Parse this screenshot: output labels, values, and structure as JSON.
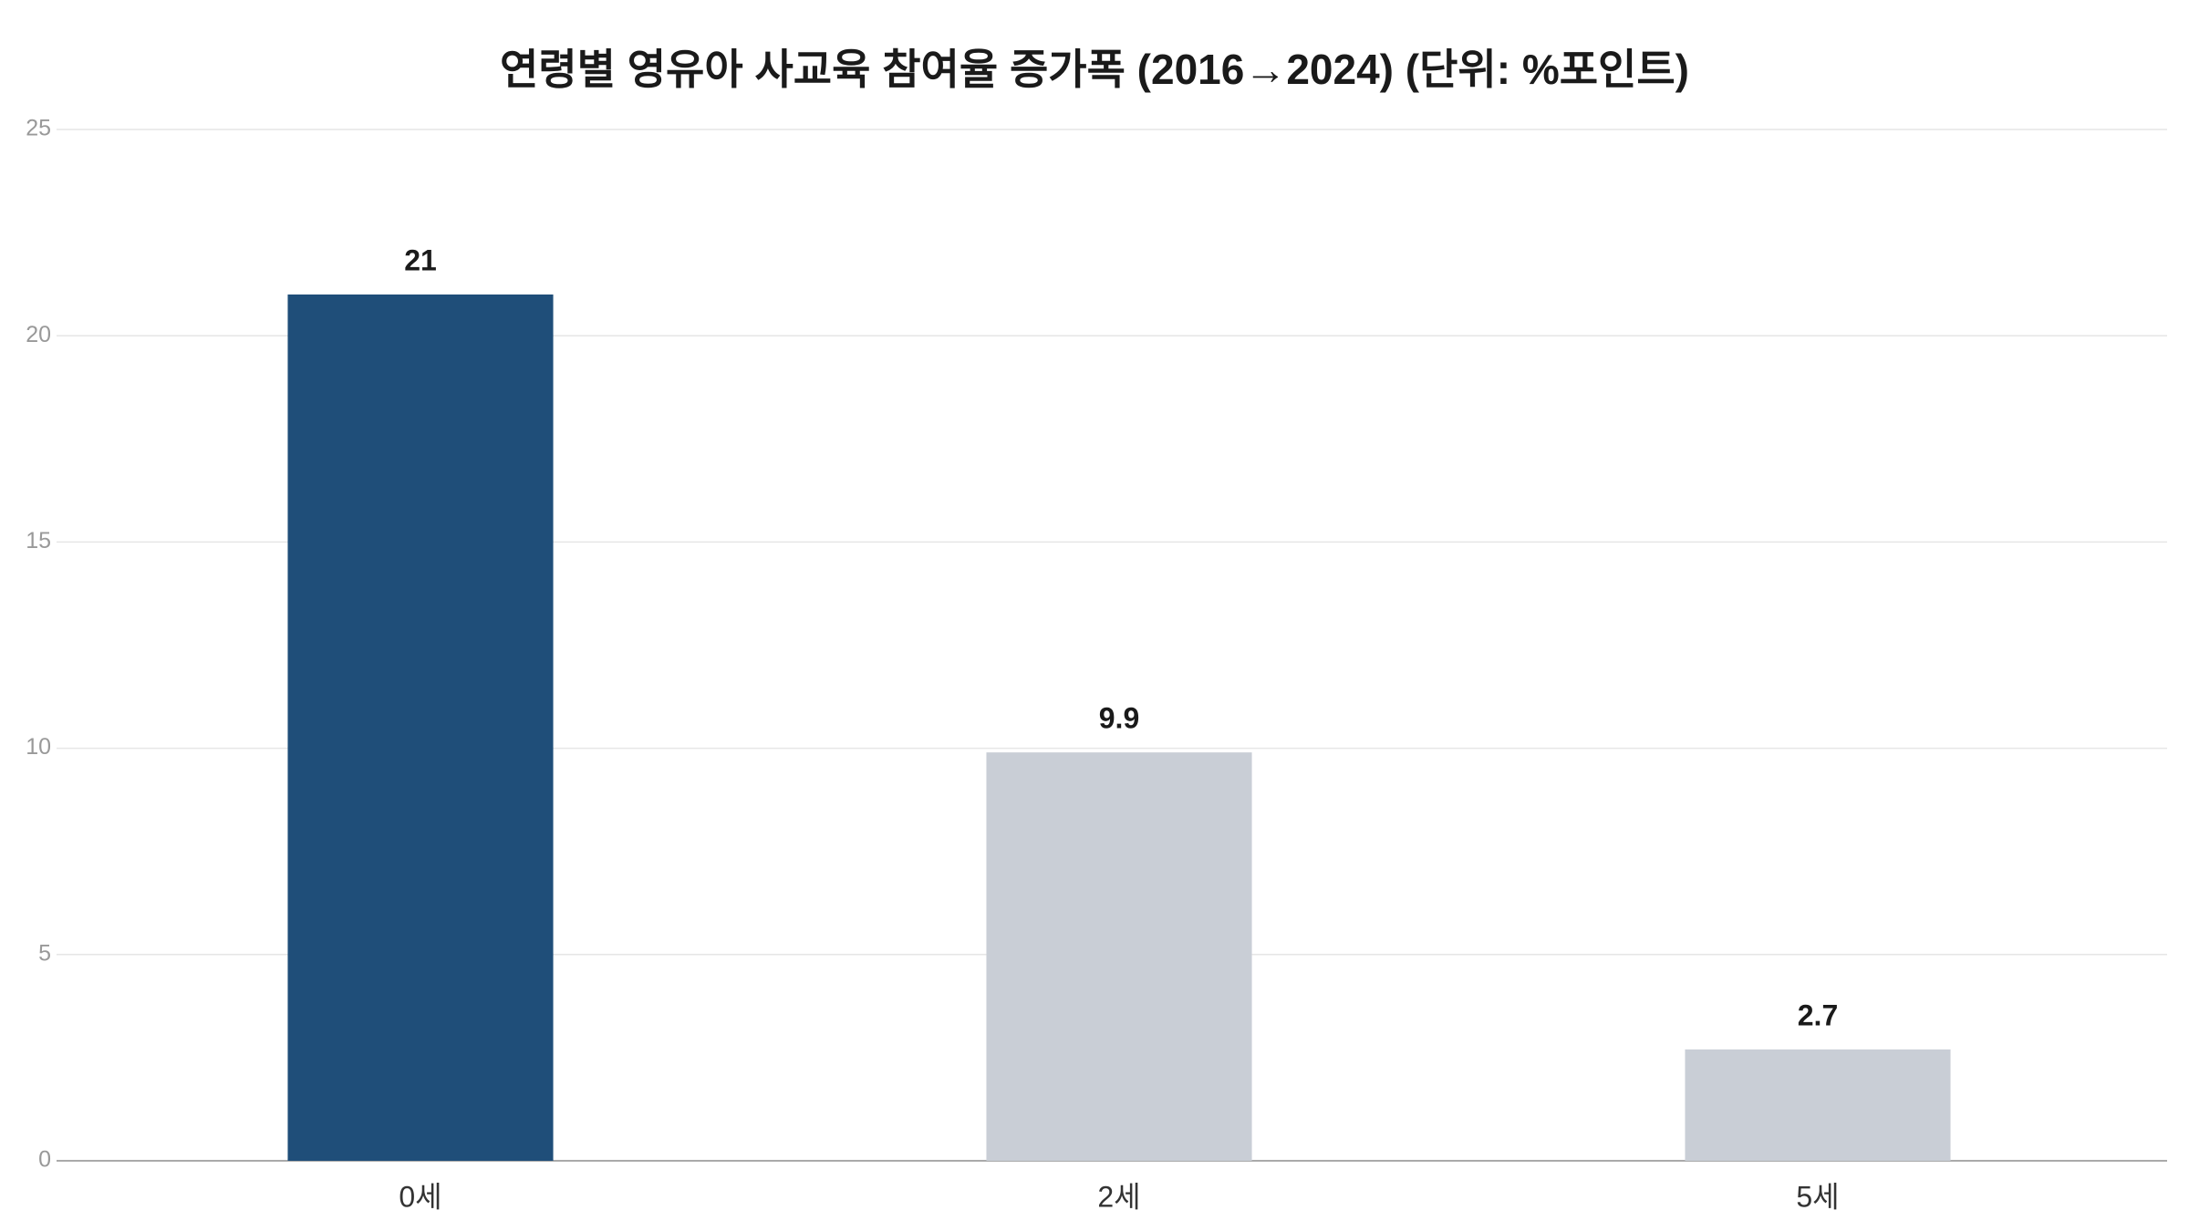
{
  "chart_data": {
    "type": "bar",
    "title": "연령별 영유아 사교육 참여율 증가폭 (2016→2024) (단위: %포인트)",
    "categories": [
      "0세",
      "2세",
      "5세"
    ],
    "values": [
      21,
      9.9,
      2.7
    ],
    "colors": [
      "#1f4e79",
      "#c9ced6",
      "#c9ced6"
    ],
    "ylim": [
      0,
      25
    ],
    "yticks": [
      0,
      5,
      10,
      15,
      20,
      25
    ],
    "grid": true
  }
}
